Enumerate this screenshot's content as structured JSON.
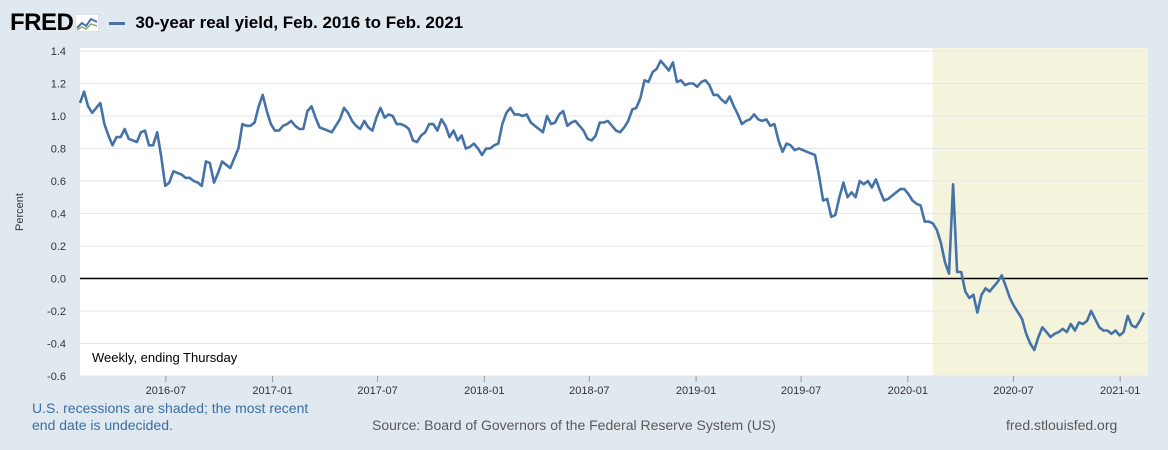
{
  "header": {
    "logo": "FRED",
    "title": "30-year real yield, Feb. 2016 to Feb. 2021",
    "line_color": "#4572a7"
  },
  "footer": {
    "recession_note": "U.S. recessions are shaded; the most recent end date is undecided.",
    "source": "Source: Board of Governors of the Federal Reserve System (US)",
    "site": "fred.stlouisfed.org"
  },
  "chart_data": {
    "type": "line",
    "ylabel": "Percent",
    "annotation": "Weekly, ending Thursday",
    "ylim": [
      -0.6,
      1.4
    ],
    "yticks": [
      "1.4",
      "1.2",
      "1.0",
      "0.8",
      "0.6",
      "0.4",
      "0.2",
      "0.0",
      "-0.2",
      "-0.4",
      "-0.6"
    ],
    "ytick_values": [
      1.4,
      1.2,
      1.0,
      0.8,
      0.6,
      0.4,
      0.2,
      0.0,
      -0.2,
      -0.4,
      -0.6
    ],
    "xlim": [
      "2016-02-04",
      "2021-02-18"
    ],
    "xticks": [
      "2016-07",
      "2017-01",
      "2017-07",
      "2018-01",
      "2018-07",
      "2019-01",
      "2019-07",
      "2020-01",
      "2020-07",
      "2021-01"
    ],
    "grid": true,
    "zero_line": true,
    "recession_shading": {
      "start": "2020-02-13",
      "end": "2021-02-18",
      "color": "#f4f4dc"
    },
    "series": [
      {
        "points": [
          [
            "2016-02-04",
            1.08
          ],
          [
            "2016-02-11",
            1.15
          ],
          [
            "2016-02-18",
            1.06
          ],
          [
            "2016-02-25",
            1.02
          ],
          [
            "2016-03-03",
            1.05
          ],
          [
            "2016-03-10",
            1.08
          ],
          [
            "2016-03-17",
            0.95
          ],
          [
            "2016-03-24",
            0.88
          ],
          [
            "2016-03-31",
            0.82
          ],
          [
            "2016-04-07",
            0.87
          ],
          [
            "2016-04-14",
            0.87
          ],
          [
            "2016-04-21",
            0.92
          ],
          [
            "2016-04-28",
            0.86
          ],
          [
            "2016-05-05",
            0.85
          ],
          [
            "2016-05-12",
            0.84
          ],
          [
            "2016-05-19",
            0.9
          ],
          [
            "2016-05-26",
            0.91
          ],
          [
            "2016-06-02",
            0.82
          ],
          [
            "2016-06-09",
            0.82
          ],
          [
            "2016-06-16",
            0.9
          ],
          [
            "2016-06-23",
            0.75
          ],
          [
            "2016-06-30",
            0.57
          ],
          [
            "2016-07-07",
            0.59
          ],
          [
            "2016-07-14",
            0.66
          ],
          [
            "2016-07-21",
            0.65
          ],
          [
            "2016-07-28",
            0.64
          ],
          [
            "2016-08-04",
            0.62
          ],
          [
            "2016-08-11",
            0.62
          ],
          [
            "2016-08-18",
            0.6
          ],
          [
            "2016-08-25",
            0.59
          ],
          [
            "2016-09-01",
            0.57
          ],
          [
            "2016-09-08",
            0.72
          ],
          [
            "2016-09-15",
            0.71
          ],
          [
            "2016-09-22",
            0.59
          ],
          [
            "2016-09-29",
            0.65
          ],
          [
            "2016-10-06",
            0.72
          ],
          [
            "2016-10-13",
            0.7
          ],
          [
            "2016-10-20",
            0.68
          ],
          [
            "2016-10-27",
            0.74
          ],
          [
            "2016-11-03",
            0.8
          ],
          [
            "2016-11-10",
            0.95
          ],
          [
            "2016-11-17",
            0.94
          ],
          [
            "2016-11-24",
            0.94
          ],
          [
            "2016-12-01",
            0.96
          ],
          [
            "2016-12-08",
            1.06
          ],
          [
            "2016-12-15",
            1.13
          ],
          [
            "2016-12-22",
            1.03
          ],
          [
            "2016-12-29",
            0.95
          ],
          [
            "2017-01-05",
            0.91
          ],
          [
            "2017-01-12",
            0.91
          ],
          [
            "2017-01-19",
            0.94
          ],
          [
            "2017-01-26",
            0.95
          ],
          [
            "2017-02-02",
            0.97
          ],
          [
            "2017-02-09",
            0.94
          ],
          [
            "2017-02-16",
            0.92
          ],
          [
            "2017-02-23",
            0.92
          ],
          [
            "2017-03-02",
            1.03
          ],
          [
            "2017-03-09",
            1.06
          ],
          [
            "2017-03-16",
            0.99
          ],
          [
            "2017-03-23",
            0.93
          ],
          [
            "2017-03-30",
            0.92
          ],
          [
            "2017-04-06",
            0.91
          ],
          [
            "2017-04-13",
            0.9
          ],
          [
            "2017-04-20",
            0.94
          ],
          [
            "2017-04-27",
            0.98
          ],
          [
            "2017-05-04",
            1.05
          ],
          [
            "2017-05-11",
            1.02
          ],
          [
            "2017-05-18",
            0.97
          ],
          [
            "2017-05-25",
            0.94
          ],
          [
            "2017-06-01",
            0.92
          ],
          [
            "2017-06-08",
            0.97
          ],
          [
            "2017-06-15",
            0.93
          ],
          [
            "2017-06-22",
            0.91
          ],
          [
            "2017-06-29",
            0.99
          ],
          [
            "2017-07-06",
            1.05
          ],
          [
            "2017-07-13",
            0.99
          ],
          [
            "2017-07-20",
            1.01
          ],
          [
            "2017-07-27",
            1.0
          ],
          [
            "2017-08-03",
            0.95
          ],
          [
            "2017-08-10",
            0.95
          ],
          [
            "2017-08-17",
            0.94
          ],
          [
            "2017-08-24",
            0.92
          ],
          [
            "2017-08-31",
            0.85
          ],
          [
            "2017-09-07",
            0.84
          ],
          [
            "2017-09-14",
            0.88
          ],
          [
            "2017-09-21",
            0.9
          ],
          [
            "2017-09-28",
            0.95
          ],
          [
            "2017-10-05",
            0.95
          ],
          [
            "2017-10-12",
            0.91
          ],
          [
            "2017-10-19",
            0.98
          ],
          [
            "2017-10-26",
            0.94
          ],
          [
            "2017-11-02",
            0.87
          ],
          [
            "2017-11-09",
            0.91
          ],
          [
            "2017-11-16",
            0.85
          ],
          [
            "2017-11-23",
            0.88
          ],
          [
            "2017-11-30",
            0.8
          ],
          [
            "2017-12-07",
            0.81
          ],
          [
            "2017-12-14",
            0.83
          ],
          [
            "2017-12-21",
            0.8
          ],
          [
            "2017-12-28",
            0.76
          ],
          [
            "2018-01-04",
            0.8
          ],
          [
            "2018-01-11",
            0.8
          ],
          [
            "2018-01-18",
            0.82
          ],
          [
            "2018-01-25",
            0.83
          ],
          [
            "2018-02-01",
            0.95
          ],
          [
            "2018-02-08",
            1.02
          ],
          [
            "2018-02-15",
            1.05
          ],
          [
            "2018-02-22",
            1.01
          ],
          [
            "2018-03-01",
            1.01
          ],
          [
            "2018-03-08",
            1.0
          ],
          [
            "2018-03-15",
            1.01
          ],
          [
            "2018-03-22",
            0.96
          ],
          [
            "2018-03-29",
            0.94
          ],
          [
            "2018-04-05",
            0.92
          ],
          [
            "2018-04-12",
            0.9
          ],
          [
            "2018-04-19",
            1.0
          ],
          [
            "2018-04-26",
            0.95
          ],
          [
            "2018-05-03",
            0.96
          ],
          [
            "2018-05-10",
            1.01
          ],
          [
            "2018-05-17",
            1.03
          ],
          [
            "2018-05-24",
            0.94
          ],
          [
            "2018-05-31",
            0.96
          ],
          [
            "2018-06-07",
            0.97
          ],
          [
            "2018-06-14",
            0.94
          ],
          [
            "2018-06-21",
            0.91
          ],
          [
            "2018-06-28",
            0.86
          ],
          [
            "2018-07-05",
            0.85
          ],
          [
            "2018-07-12",
            0.88
          ],
          [
            "2018-07-19",
            0.96
          ],
          [
            "2018-07-26",
            0.96
          ],
          [
            "2018-08-02",
            0.97
          ],
          [
            "2018-08-09",
            0.94
          ],
          [
            "2018-08-16",
            0.91
          ],
          [
            "2018-08-23",
            0.9
          ],
          [
            "2018-08-30",
            0.93
          ],
          [
            "2018-09-06",
            0.97
          ],
          [
            "2018-09-13",
            1.04
          ],
          [
            "2018-09-20",
            1.05
          ],
          [
            "2018-09-27",
            1.11
          ],
          [
            "2018-10-04",
            1.22
          ],
          [
            "2018-10-11",
            1.21
          ],
          [
            "2018-10-18",
            1.27
          ],
          [
            "2018-10-25",
            1.29
          ],
          [
            "2018-11-01",
            1.34
          ],
          [
            "2018-11-08",
            1.31
          ],
          [
            "2018-11-15",
            1.28
          ],
          [
            "2018-11-22",
            1.33
          ],
          [
            "2018-11-29",
            1.21
          ],
          [
            "2018-12-06",
            1.22
          ],
          [
            "2018-12-13",
            1.19
          ],
          [
            "2018-12-20",
            1.2
          ],
          [
            "2018-12-27",
            1.2
          ],
          [
            "2019-01-03",
            1.18
          ],
          [
            "2019-01-10",
            1.21
          ],
          [
            "2019-01-17",
            1.22
          ],
          [
            "2019-01-24",
            1.19
          ],
          [
            "2019-01-31",
            1.13
          ],
          [
            "2019-02-07",
            1.13
          ],
          [
            "2019-02-14",
            1.1
          ],
          [
            "2019-02-21",
            1.08
          ],
          [
            "2019-02-28",
            1.12
          ],
          [
            "2019-03-07",
            1.06
          ],
          [
            "2019-03-14",
            1.01
          ],
          [
            "2019-03-21",
            0.95
          ],
          [
            "2019-03-28",
            0.97
          ],
          [
            "2019-04-04",
            0.98
          ],
          [
            "2019-04-11",
            1.01
          ],
          [
            "2019-04-18",
            0.98
          ],
          [
            "2019-04-25",
            0.97
          ],
          [
            "2019-05-02",
            0.98
          ],
          [
            "2019-05-09",
            0.94
          ],
          [
            "2019-05-16",
            0.95
          ],
          [
            "2019-05-23",
            0.85
          ],
          [
            "2019-05-30",
            0.78
          ],
          [
            "2019-06-06",
            0.83
          ],
          [
            "2019-06-13",
            0.82
          ],
          [
            "2019-06-20",
            0.79
          ],
          [
            "2019-06-27",
            0.8
          ],
          [
            "2019-07-04",
            0.79
          ],
          [
            "2019-07-11",
            0.78
          ],
          [
            "2019-07-18",
            0.77
          ],
          [
            "2019-07-25",
            0.76
          ],
          [
            "2019-08-01",
            0.63
          ],
          [
            "2019-08-08",
            0.48
          ],
          [
            "2019-08-15",
            0.49
          ],
          [
            "2019-08-22",
            0.38
          ],
          [
            "2019-08-29",
            0.39
          ],
          [
            "2019-09-05",
            0.5
          ],
          [
            "2019-09-12",
            0.59
          ],
          [
            "2019-09-19",
            0.5
          ],
          [
            "2019-09-26",
            0.53
          ],
          [
            "2019-10-03",
            0.5
          ],
          [
            "2019-10-10",
            0.6
          ],
          [
            "2019-10-17",
            0.58
          ],
          [
            "2019-10-24",
            0.6
          ],
          [
            "2019-10-31",
            0.56
          ],
          [
            "2019-11-07",
            0.61
          ],
          [
            "2019-11-14",
            0.54
          ],
          [
            "2019-11-21",
            0.48
          ],
          [
            "2019-11-28",
            0.49
          ],
          [
            "2019-12-05",
            0.51
          ],
          [
            "2019-12-12",
            0.53
          ],
          [
            "2019-12-19",
            0.55
          ],
          [
            "2019-12-26",
            0.55
          ],
          [
            "2020-01-02",
            0.52
          ],
          [
            "2020-01-09",
            0.48
          ],
          [
            "2020-01-16",
            0.46
          ],
          [
            "2020-01-23",
            0.45
          ],
          [
            "2020-01-30",
            0.35
          ],
          [
            "2020-02-06",
            0.35
          ],
          [
            "2020-02-13",
            0.34
          ],
          [
            "2020-02-20",
            0.3
          ],
          [
            "2020-02-27",
            0.22
          ],
          [
            "2020-03-05",
            0.1
          ],
          [
            "2020-03-12",
            0.03
          ],
          [
            "2020-03-19",
            0.58
          ],
          [
            "2020-03-26",
            0.04
          ],
          [
            "2020-04-02",
            0.04
          ],
          [
            "2020-04-09",
            -0.08
          ],
          [
            "2020-04-16",
            -0.12
          ],
          [
            "2020-04-23",
            -0.1
          ],
          [
            "2020-04-30",
            -0.21
          ],
          [
            "2020-05-07",
            -0.1
          ],
          [
            "2020-05-14",
            -0.06
          ],
          [
            "2020-05-21",
            -0.08
          ],
          [
            "2020-05-28",
            -0.05
          ],
          [
            "2020-06-04",
            -0.02
          ],
          [
            "2020-06-11",
            0.02
          ],
          [
            "2020-06-18",
            -0.05
          ],
          [
            "2020-06-25",
            -0.12
          ],
          [
            "2020-07-02",
            -0.17
          ],
          [
            "2020-07-09",
            -0.21
          ],
          [
            "2020-07-16",
            -0.25
          ],
          [
            "2020-07-23",
            -0.34
          ],
          [
            "2020-07-30",
            -0.4
          ],
          [
            "2020-08-06",
            -0.44
          ],
          [
            "2020-08-13",
            -0.36
          ],
          [
            "2020-08-20",
            -0.3
          ],
          [
            "2020-08-27",
            -0.33
          ],
          [
            "2020-09-03",
            -0.36
          ],
          [
            "2020-09-10",
            -0.34
          ],
          [
            "2020-09-17",
            -0.33
          ],
          [
            "2020-09-24",
            -0.31
          ],
          [
            "2020-10-01",
            -0.33
          ],
          [
            "2020-10-08",
            -0.28
          ],
          [
            "2020-10-15",
            -0.32
          ],
          [
            "2020-10-22",
            -0.27
          ],
          [
            "2020-10-29",
            -0.28
          ],
          [
            "2020-11-05",
            -0.26
          ],
          [
            "2020-11-12",
            -0.2
          ],
          [
            "2020-11-19",
            -0.25
          ],
          [
            "2020-11-26",
            -0.3
          ],
          [
            "2020-12-03",
            -0.32
          ],
          [
            "2020-12-10",
            -0.32
          ],
          [
            "2020-12-17",
            -0.34
          ],
          [
            "2020-12-24",
            -0.32
          ],
          [
            "2020-12-31",
            -0.35
          ],
          [
            "2021-01-07",
            -0.33
          ],
          [
            "2021-01-14",
            -0.23
          ],
          [
            "2021-01-21",
            -0.29
          ],
          [
            "2021-01-28",
            -0.3
          ],
          [
            "2021-02-04",
            -0.26
          ],
          [
            "2021-02-11",
            -0.21
          ]
        ]
      }
    ]
  }
}
